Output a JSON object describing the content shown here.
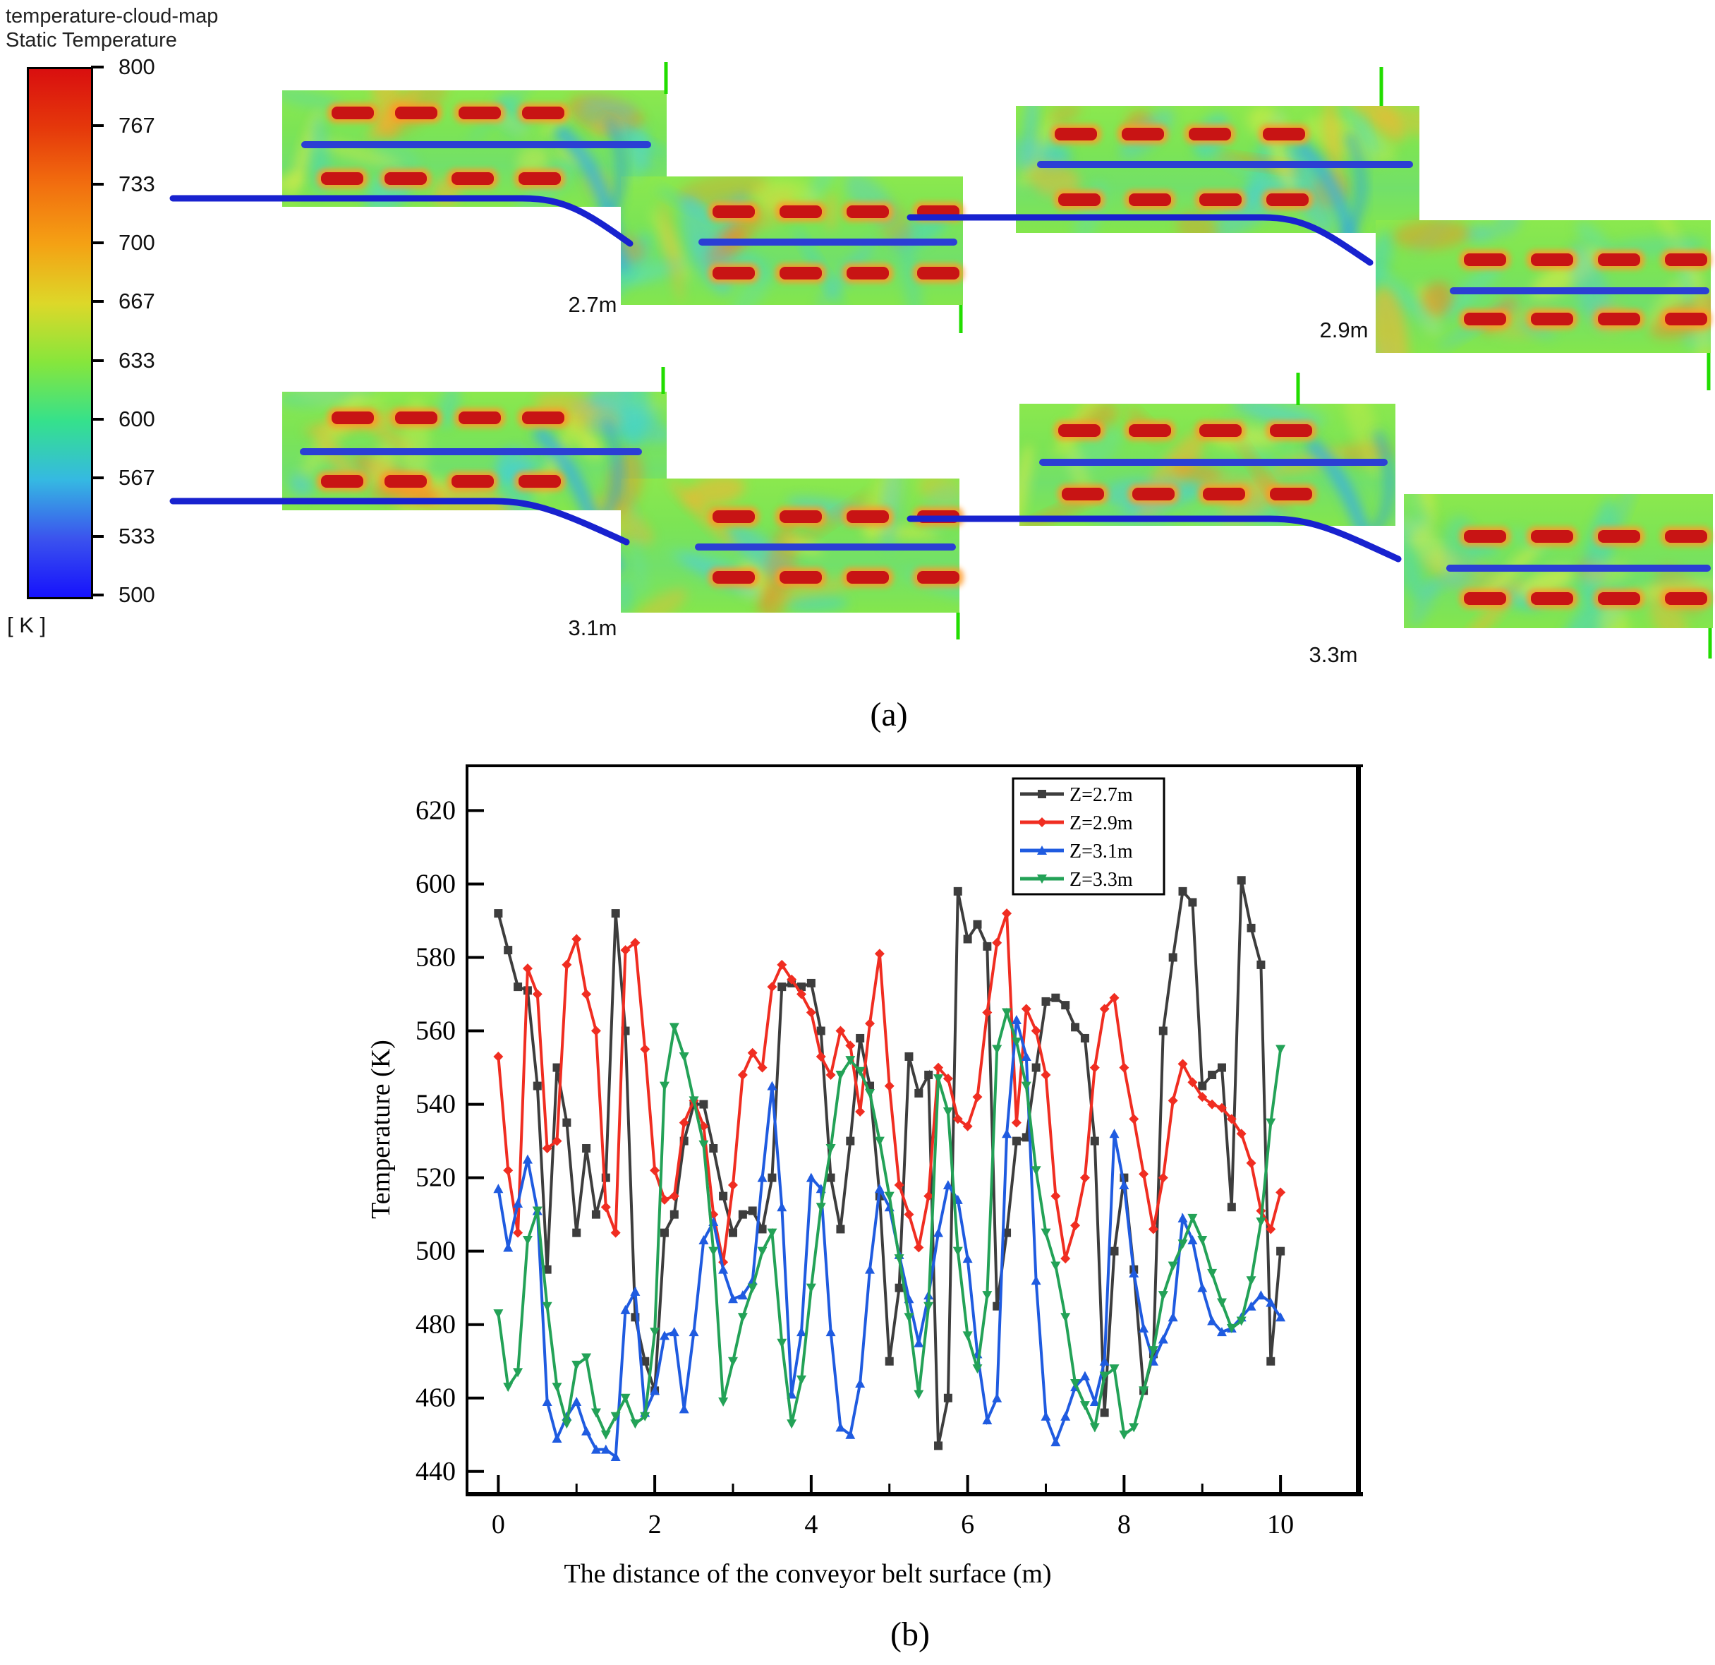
{
  "colorbar": {
    "title_line1": "temperature-cloud-map",
    "title_line2": "Static Temperature",
    "units": "[ K ]",
    "tick_labels": [
      "800",
      "767",
      "733",
      "700",
      "667",
      "633",
      "600",
      "567",
      "533",
      "500"
    ],
    "gradient_stops": [
      "#d90f0f",
      "#e5380b",
      "#f2700f",
      "#f4a214",
      "#ddd829",
      "#86e63c",
      "#35e18c",
      "#35b9e2",
      "#3b53ee",
      "#1612fc"
    ]
  },
  "cloud_maps": [
    {
      "label": "2.7m"
    },
    {
      "label": "2.9m"
    },
    {
      "label": "3.1m"
    },
    {
      "label": "3.3m"
    }
  ],
  "panel_a_label": "(a)",
  "panel_b_label": "(b)",
  "chart_data": {
    "type": "line",
    "title": "",
    "xlabel": "The distance of the conveyor belt surface (m)",
    "ylabel": "Temperature (K)",
    "xlim": [
      -0.4,
      11.0
    ],
    "ylim": [
      434,
      632
    ],
    "x_ticks": [
      0,
      2,
      4,
      6,
      8,
      10
    ],
    "x_minor_ticks": [
      1,
      3,
      5,
      7,
      9
    ],
    "y_ticks": [
      440,
      460,
      480,
      500,
      520,
      540,
      560,
      580,
      600,
      620
    ],
    "grid": false,
    "legend_position": "top-right",
    "x_start": 0,
    "x_step": 0.125,
    "series": [
      {
        "name": "Z=2.7m",
        "color": "#3d3d3d",
        "marker": "square",
        "values": [
          592,
          582,
          572,
          571,
          545,
          495,
          550,
          535,
          505,
          528,
          510,
          520,
          592,
          560,
          482,
          470,
          462,
          505,
          510,
          530,
          540,
          540,
          528,
          515,
          505,
          510,
          511,
          506,
          520,
          572,
          573,
          572,
          573,
          560,
          520,
          506,
          530,
          558,
          545,
          515,
          470,
          490,
          553,
          543,
          548,
          447,
          460,
          598,
          585,
          589,
          583,
          485,
          505,
          530,
          531,
          550,
          568,
          569,
          567,
          561,
          558,
          530,
          456,
          500,
          520,
          495,
          462,
          472,
          560,
          580,
          598,
          595,
          545,
          548,
          550,
          512,
          601,
          588,
          578,
          470,
          500
        ]
      },
      {
        "name": "Z=2.9m",
        "color": "#f02d21",
        "marker": "diamond",
        "values": [
          553,
          522,
          505,
          577,
          570,
          528,
          530,
          578,
          585,
          570,
          560,
          512,
          505,
          582,
          584,
          555,
          522,
          514,
          515,
          535,
          541,
          534,
          510,
          497,
          518,
          548,
          554,
          550,
          572,
          578,
          574,
          570,
          565,
          553,
          548,
          560,
          556,
          538,
          562,
          581,
          545,
          518,
          510,
          501,
          515,
          550,
          547,
          536,
          534,
          542,
          565,
          584,
          592,
          535,
          566,
          560,
          548,
          515,
          498,
          507,
          520,
          550,
          566,
          569,
          550,
          536,
          521,
          506,
          520,
          541,
          551,
          546,
          542,
          540,
          539,
          536,
          532,
          524,
          511,
          506,
          516
        ]
      },
      {
        "name": "Z=3.1m",
        "color": "#1f5be0",
        "marker": "triangle-up",
        "values": [
          517,
          501,
          513,
          525,
          511,
          459,
          449,
          455,
          459,
          451,
          446,
          446,
          444,
          484,
          489,
          456,
          462,
          477,
          478,
          457,
          478,
          503,
          508,
          495,
          487,
          488,
          492,
          520,
          545,
          512,
          461,
          478,
          520,
          517,
          478,
          452,
          450,
          464,
          495,
          517,
          512,
          499,
          487,
          475,
          488,
          505,
          518,
          514,
          498,
          472,
          454,
          460,
          532,
          563,
          553,
          492,
          455,
          448,
          455,
          463,
          466,
          459,
          470,
          532,
          518,
          494,
          479,
          470,
          476,
          482,
          509,
          503,
          490,
          481,
          478,
          479,
          482,
          485,
          488,
          486,
          482
        ]
      },
      {
        "name": "Z=3.3m",
        "color": "#23a257",
        "marker": "triangle-down",
        "values": [
          483,
          463,
          467,
          503,
          511,
          485,
          463,
          453,
          469,
          471,
          456,
          450,
          455,
          460,
          453,
          455,
          478,
          545,
          561,
          553,
          541,
          529,
          500,
          459,
          470,
          482,
          490,
          500,
          505,
          475,
          453,
          465,
          490,
          512,
          528,
          548,
          552,
          549,
          543,
          530,
          515,
          498,
          482,
          461,
          485,
          547,
          538,
          500,
          477,
          468,
          488,
          555,
          565,
          557,
          545,
          522,
          505,
          496,
          482,
          464,
          458,
          452,
          466,
          468,
          450,
          452,
          462,
          473,
          488,
          496,
          502,
          509,
          503,
          494,
          486,
          479,
          481,
          492,
          508,
          535,
          555
        ]
      }
    ]
  }
}
